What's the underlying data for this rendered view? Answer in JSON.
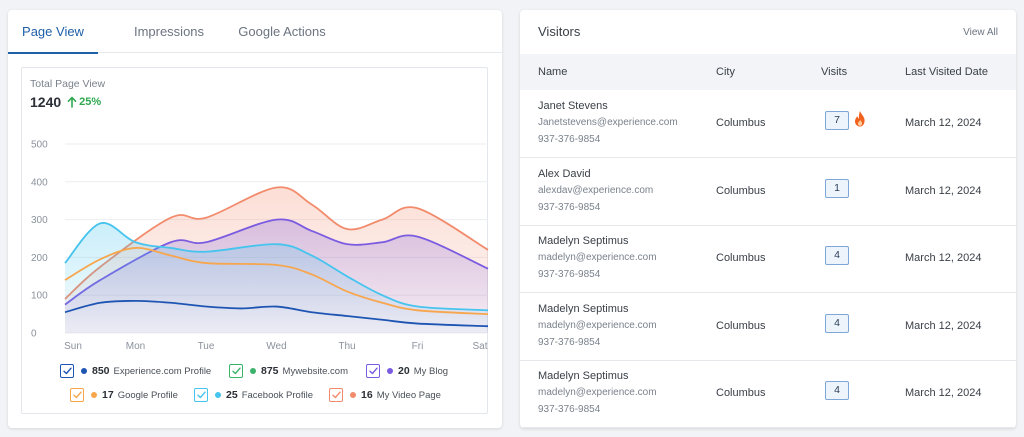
{
  "tabs": [
    {
      "label": "Page View",
      "active": true
    },
    {
      "label": "Impressions",
      "active": false
    },
    {
      "label": "Google Actions",
      "active": false
    }
  ],
  "summary": {
    "label": "Total Page View",
    "value": "1240",
    "trend": "25%",
    "trend_color": "#2fa84f"
  },
  "chart_data": {
    "type": "area",
    "x": [
      "Sun",
      "Mon",
      "Tue",
      "Wed",
      "Thu",
      "Fri",
      "Sat"
    ],
    "ylim": [
      0,
      500
    ],
    "yticks": [
      0,
      100,
      200,
      300,
      400,
      500
    ],
    "grid": true,
    "series": [
      {
        "name": "My Video Page",
        "color": "#f28b6c",
        "fill": true,
        "points": [
          [
            0,
            90
          ],
          [
            0.5,
            175
          ],
          [
            1.5,
            305
          ],
          [
            2,
            305
          ],
          [
            3,
            385
          ],
          [
            3.5,
            340
          ],
          [
            4,
            275
          ],
          [
            4.5,
            300
          ],
          [
            5,
            330
          ],
          [
            6,
            220
          ]
        ]
      },
      {
        "name": "My Blog",
        "color": "#7b5ce0",
        "fill": true,
        "points": [
          [
            0,
            75
          ],
          [
            0.5,
            140
          ],
          [
            1.5,
            240
          ],
          [
            2,
            240
          ],
          [
            3,
            300
          ],
          [
            3.5,
            270
          ],
          [
            4,
            235
          ],
          [
            4.5,
            240
          ],
          [
            5,
            255
          ],
          [
            6,
            170
          ]
        ]
      },
      {
        "name": "Facebook Profile",
        "color": "#46c4ee",
        "fill": true,
        "points": [
          [
            0,
            185
          ],
          [
            0.5,
            290
          ],
          [
            1,
            240
          ],
          [
            1.5,
            225
          ],
          [
            2,
            215
          ],
          [
            3,
            235
          ],
          [
            3.5,
            205
          ],
          [
            4,
            150
          ],
          [
            4.5,
            100
          ],
          [
            5,
            70
          ],
          [
            6,
            60
          ]
        ]
      },
      {
        "name": "Google Profile",
        "color": "#f7a64d",
        "fill": false,
        "points": [
          [
            0,
            140
          ],
          [
            0.5,
            195
          ],
          [
            1,
            225
          ],
          [
            1.5,
            205
          ],
          [
            2,
            185
          ],
          [
            3,
            180
          ],
          [
            3.5,
            155
          ],
          [
            4,
            110
          ],
          [
            4.5,
            80
          ],
          [
            5,
            60
          ],
          [
            6,
            50
          ]
        ]
      },
      {
        "name": "Experience.com Profile",
        "color": "#1e55b3",
        "fill": false,
        "points": [
          [
            0,
            55
          ],
          [
            0.5,
            80
          ],
          [
            1,
            85
          ],
          [
            1.5,
            80
          ],
          [
            2,
            70
          ],
          [
            2.5,
            65
          ],
          [
            3,
            70
          ],
          [
            3.5,
            55
          ],
          [
            4,
            45
          ],
          [
            4.5,
            35
          ],
          [
            5,
            25
          ],
          [
            6,
            18
          ]
        ]
      }
    ]
  },
  "legend": [
    {
      "value": "850",
      "name": "Experience.com Profile",
      "check_color": "#1e55b3",
      "dot_color": "#1e55b3"
    },
    {
      "value": "875",
      "name": "Mywebsite.com",
      "check_color": "#3bb36b",
      "dot_color": "#3bb36b"
    },
    {
      "value": "20",
      "name": "My Blog",
      "check_color": "#7b5ce0",
      "dot_color": "#7b5ce0"
    },
    {
      "value": "17",
      "name": "Google Profile",
      "check_color": "#f7a64d",
      "dot_color": "#f7a64d"
    },
    {
      "value": "25",
      "name": "Facebook Profile",
      "check_color": "#46c4ee",
      "dot_color": "#46c4ee"
    },
    {
      "value": "16",
      "name": "My Video Page",
      "check_color": "#f28b6c",
      "dot_color": "#f28b6c"
    }
  ],
  "visitors": {
    "title": "Visitors",
    "view_all": "View All",
    "columns": [
      "Name",
      "City",
      "Visits",
      "Last Visited Date"
    ],
    "rows": [
      {
        "name": "Janet Stevens",
        "email": "Janetstevens@experience.com",
        "phone": "937-376-9854",
        "city": "Columbus",
        "visits": "7",
        "hot": true,
        "date": "March 12, 2024"
      },
      {
        "name": "Alex David",
        "email": "alexdav@experience.com",
        "phone": "937-376-9854",
        "city": "Columbus",
        "visits": "1",
        "hot": false,
        "date": "March 12, 2024"
      },
      {
        "name": "Madelyn Septimus",
        "email": "madelyn@experience.com",
        "phone": "937-376-9854",
        "city": "Columbus",
        "visits": "4",
        "hot": false,
        "date": "March 12, 2024"
      },
      {
        "name": "Madelyn Septimus",
        "email": "madelyn@experience.com",
        "phone": "937-376-9854",
        "city": "Columbus",
        "visits": "4",
        "hot": false,
        "date": "March 12, 2024"
      },
      {
        "name": "Madelyn Septimus",
        "email": "madelyn@experience.com",
        "phone": "937-376-9854",
        "city": "Columbus",
        "visits": "4",
        "hot": false,
        "date": "March 12, 2024"
      }
    ]
  },
  "icons": {
    "trend": "arrow-up-icon",
    "hot": "fire-icon",
    "check": "check-icon"
  }
}
